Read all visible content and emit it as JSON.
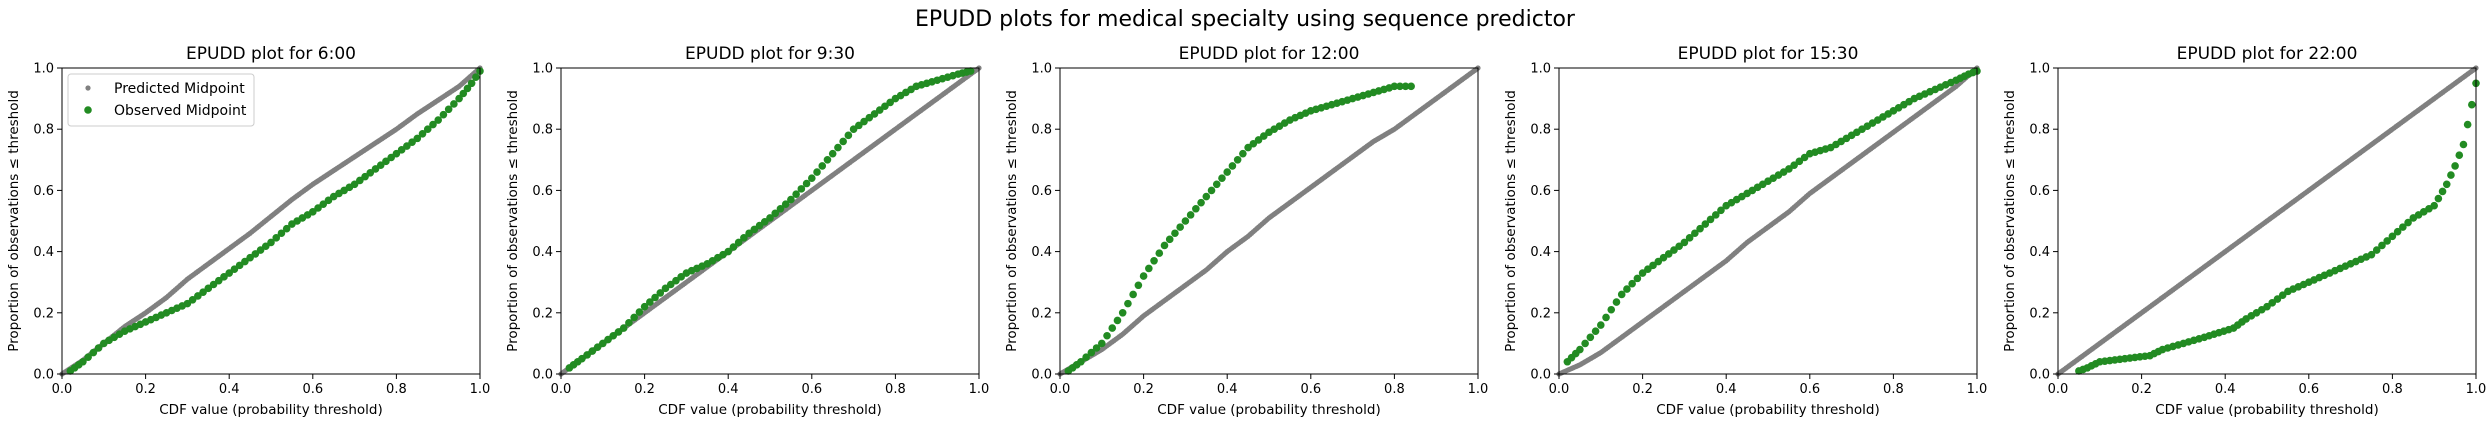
{
  "figure": {
    "suptitle": "EPUDD plots for medical specialty using sequence predictor"
  },
  "colors": {
    "predicted": "#808080",
    "observed": "#228b22"
  },
  "chart_data": [
    {
      "type": "scatter",
      "title": "EPUDD plot for 6:00",
      "xlabel": "CDF value (probability threshold)",
      "ylabel": "Proportion of observations ≤ threshold",
      "xlim": [
        0,
        1
      ],
      "ylim": [
        0,
        1
      ],
      "xticks": [
        "0.0",
        "0.2",
        "0.4",
        "0.6",
        "0.8",
        "1.0"
      ],
      "yticks": [
        "0.0",
        "0.2",
        "0.4",
        "0.6",
        "0.8",
        "1.0"
      ],
      "legend": {
        "position": "top-left",
        "entries": [
          "Predicted Midpoint",
          "Observed Midpoint"
        ]
      },
      "series": [
        {
          "name": "Predicted Midpoint",
          "marker": "small",
          "points": [
            [
              0,
              0
            ],
            [
              0.05,
              0.045
            ],
            [
              0.1,
              0.1
            ],
            [
              0.15,
              0.155
            ],
            [
              0.2,
              0.2
            ],
            [
              0.25,
              0.25
            ],
            [
              0.3,
              0.31
            ],
            [
              0.35,
              0.36
            ],
            [
              0.4,
              0.41
            ],
            [
              0.45,
              0.46
            ],
            [
              0.5,
              0.515
            ],
            [
              0.55,
              0.57
            ],
            [
              0.6,
              0.62
            ],
            [
              0.65,
              0.665
            ],
            [
              0.7,
              0.71
            ],
            [
              0.75,
              0.755
            ],
            [
              0.8,
              0.8
            ],
            [
              0.85,
              0.85
            ],
            [
              0.9,
              0.895
            ],
            [
              0.95,
              0.94
            ],
            [
              1.0,
              1.0
            ]
          ]
        },
        {
          "name": "Observed Midpoint",
          "marker": "large",
          "points": [
            [
              0.02,
              0.01
            ],
            [
              0.05,
              0.04
            ],
            [
              0.1,
              0.1
            ],
            [
              0.15,
              0.14
            ],
            [
              0.2,
              0.17
            ],
            [
              0.25,
              0.2
            ],
            [
              0.3,
              0.23
            ],
            [
              0.35,
              0.28
            ],
            [
              0.4,
              0.33
            ],
            [
              0.45,
              0.38
            ],
            [
              0.5,
              0.43
            ],
            [
              0.55,
              0.49
            ],
            [
              0.6,
              0.53
            ],
            [
              0.65,
              0.58
            ],
            [
              0.7,
              0.62
            ],
            [
              0.75,
              0.67
            ],
            [
              0.8,
              0.72
            ],
            [
              0.85,
              0.77
            ],
            [
              0.9,
              0.83
            ],
            [
              0.95,
              0.9
            ],
            [
              0.98,
              0.95
            ],
            [
              1.0,
              0.99
            ]
          ]
        }
      ]
    },
    {
      "type": "scatter",
      "title": "EPUDD plot for 9:30",
      "xlabel": "CDF value (probability threshold)",
      "ylabel": "Proportion of observations ≤ threshold",
      "xlim": [
        0,
        1
      ],
      "ylim": [
        0,
        1
      ],
      "xticks": [
        "0.0",
        "0.2",
        "0.4",
        "0.6",
        "0.8",
        "1.0"
      ],
      "yticks": [
        "0.0",
        "0.2",
        "0.4",
        "0.6",
        "0.8",
        "1.0"
      ],
      "series": [
        {
          "name": "Predicted Midpoint",
          "marker": "small",
          "points": [
            [
              0,
              0
            ],
            [
              0.05,
              0.05
            ],
            [
              0.1,
              0.1
            ],
            [
              0.15,
              0.15
            ],
            [
              0.2,
              0.2
            ],
            [
              0.25,
              0.25
            ],
            [
              0.3,
              0.3
            ],
            [
              0.35,
              0.35
            ],
            [
              0.4,
              0.4
            ],
            [
              0.45,
              0.45
            ],
            [
              0.5,
              0.5
            ],
            [
              0.55,
              0.55
            ],
            [
              0.6,
              0.6
            ],
            [
              0.65,
              0.65
            ],
            [
              0.7,
              0.7
            ],
            [
              0.75,
              0.75
            ],
            [
              0.8,
              0.8
            ],
            [
              0.85,
              0.85
            ],
            [
              0.9,
              0.9
            ],
            [
              0.95,
              0.95
            ],
            [
              1.0,
              1.0
            ]
          ]
        },
        {
          "name": "Observed Midpoint",
          "marker": "large",
          "points": [
            [
              0.02,
              0.02
            ],
            [
              0.05,
              0.05
            ],
            [
              0.1,
              0.1
            ],
            [
              0.15,
              0.15
            ],
            [
              0.2,
              0.22
            ],
            [
              0.25,
              0.28
            ],
            [
              0.3,
              0.33
            ],
            [
              0.35,
              0.36
            ],
            [
              0.4,
              0.4
            ],
            [
              0.45,
              0.46
            ],
            [
              0.5,
              0.51
            ],
            [
              0.55,
              0.57
            ],
            [
              0.6,
              0.64
            ],
            [
              0.65,
              0.72
            ],
            [
              0.7,
              0.8
            ],
            [
              0.75,
              0.85
            ],
            [
              0.8,
              0.9
            ],
            [
              0.85,
              0.94
            ],
            [
              0.9,
              0.96
            ],
            [
              0.95,
              0.98
            ],
            [
              0.98,
              0.99
            ]
          ]
        }
      ]
    },
    {
      "type": "scatter",
      "title": "EPUDD plot for 12:00",
      "xlabel": "CDF value (probability threshold)",
      "ylabel": "Proportion of observations ≤ threshold",
      "xlim": [
        0,
        1
      ],
      "ylim": [
        0,
        1
      ],
      "xticks": [
        "0.0",
        "0.2",
        "0.4",
        "0.6",
        "0.8",
        "1.0"
      ],
      "yticks": [
        "0.0",
        "0.2",
        "0.4",
        "0.6",
        "0.8",
        "1.0"
      ],
      "series": [
        {
          "name": "Predicted Midpoint",
          "marker": "small",
          "points": [
            [
              0,
              0
            ],
            [
              0.05,
              0.04
            ],
            [
              0.1,
              0.08
            ],
            [
              0.15,
              0.13
            ],
            [
              0.2,
              0.19
            ],
            [
              0.25,
              0.24
            ],
            [
              0.3,
              0.29
            ],
            [
              0.35,
              0.34
            ],
            [
              0.4,
              0.4
            ],
            [
              0.45,
              0.45
            ],
            [
              0.5,
              0.51
            ],
            [
              0.55,
              0.56
            ],
            [
              0.6,
              0.61
            ],
            [
              0.65,
              0.66
            ],
            [
              0.7,
              0.71
            ],
            [
              0.75,
              0.76
            ],
            [
              0.8,
              0.8
            ],
            [
              0.85,
              0.85
            ],
            [
              0.9,
              0.9
            ],
            [
              0.95,
              0.95
            ],
            [
              1.0,
              1.0
            ]
          ]
        },
        {
          "name": "Observed Midpoint",
          "marker": "large",
          "points": [
            [
              0.02,
              0.01
            ],
            [
              0.05,
              0.04
            ],
            [
              0.1,
              0.1
            ],
            [
              0.15,
              0.2
            ],
            [
              0.2,
              0.32
            ],
            [
              0.25,
              0.42
            ],
            [
              0.3,
              0.5
            ],
            [
              0.35,
              0.58
            ],
            [
              0.4,
              0.66
            ],
            [
              0.45,
              0.74
            ],
            [
              0.5,
              0.79
            ],
            [
              0.55,
              0.83
            ],
            [
              0.6,
              0.86
            ],
            [
              0.65,
              0.88
            ],
            [
              0.7,
              0.9
            ],
            [
              0.75,
              0.92
            ],
            [
              0.8,
              0.94
            ],
            [
              0.84,
              0.94
            ]
          ]
        }
      ]
    },
    {
      "type": "scatter",
      "title": "EPUDD plot for 15:30",
      "xlabel": "CDF value (probability threshold)",
      "ylabel": "Proportion of observations ≤ threshold",
      "xlim": [
        0,
        1
      ],
      "ylim": [
        0,
        1
      ],
      "xticks": [
        "0.0",
        "0.2",
        "0.4",
        "0.6",
        "0.8",
        "1.0"
      ],
      "yticks": [
        "0.0",
        "0.2",
        "0.4",
        "0.6",
        "0.8",
        "1.0"
      ],
      "series": [
        {
          "name": "Predicted Midpoint",
          "marker": "small",
          "points": [
            [
              0,
              0
            ],
            [
              0.05,
              0.03
            ],
            [
              0.1,
              0.07
            ],
            [
              0.15,
              0.12
            ],
            [
              0.2,
              0.17
            ],
            [
              0.25,
              0.22
            ],
            [
              0.3,
              0.27
            ],
            [
              0.35,
              0.32
            ],
            [
              0.4,
              0.37
            ],
            [
              0.45,
              0.43
            ],
            [
              0.5,
              0.48
            ],
            [
              0.55,
              0.53
            ],
            [
              0.6,
              0.59
            ],
            [
              0.65,
              0.64
            ],
            [
              0.7,
              0.69
            ],
            [
              0.75,
              0.74
            ],
            [
              0.8,
              0.79
            ],
            [
              0.85,
              0.84
            ],
            [
              0.9,
              0.89
            ],
            [
              0.95,
              0.94
            ],
            [
              1.0,
              1.0
            ]
          ]
        },
        {
          "name": "Observed Midpoint",
          "marker": "large",
          "points": [
            [
              0.02,
              0.04
            ],
            [
              0.05,
              0.08
            ],
            [
              0.1,
              0.16
            ],
            [
              0.15,
              0.26
            ],
            [
              0.2,
              0.33
            ],
            [
              0.25,
              0.38
            ],
            [
              0.3,
              0.43
            ],
            [
              0.35,
              0.49
            ],
            [
              0.4,
              0.55
            ],
            [
              0.45,
              0.59
            ],
            [
              0.5,
              0.63
            ],
            [
              0.55,
              0.67
            ],
            [
              0.6,
              0.72
            ],
            [
              0.65,
              0.74
            ],
            [
              0.7,
              0.78
            ],
            [
              0.75,
              0.82
            ],
            [
              0.8,
              0.86
            ],
            [
              0.85,
              0.9
            ],
            [
              0.9,
              0.93
            ],
            [
              0.95,
              0.96
            ],
            [
              0.98,
              0.98
            ],
            [
              1.0,
              0.99
            ]
          ]
        }
      ]
    },
    {
      "type": "scatter",
      "title": "EPUDD plot for 22:00",
      "xlabel": "CDF value (probability threshold)",
      "ylabel": "Proportion of observations ≤ threshold",
      "xlim": [
        0,
        1
      ],
      "ylim": [
        0,
        1
      ],
      "xticks": [
        "0.0",
        "0.2",
        "0.4",
        "0.6",
        "0.8",
        "1.0"
      ],
      "yticks": [
        "0.0",
        "0.2",
        "0.4",
        "0.6",
        "0.8",
        "1.0"
      ],
      "series": [
        {
          "name": "Predicted Midpoint",
          "marker": "small",
          "points": [
            [
              0,
              0
            ],
            [
              0.05,
              0.05
            ],
            [
              0.1,
              0.1
            ],
            [
              0.15,
              0.15
            ],
            [
              0.2,
              0.2
            ],
            [
              0.25,
              0.25
            ],
            [
              0.3,
              0.3
            ],
            [
              0.35,
              0.35
            ],
            [
              0.4,
              0.4
            ],
            [
              0.45,
              0.45
            ],
            [
              0.5,
              0.5
            ],
            [
              0.55,
              0.55
            ],
            [
              0.6,
              0.6
            ],
            [
              0.65,
              0.65
            ],
            [
              0.7,
              0.7
            ],
            [
              0.75,
              0.75
            ],
            [
              0.8,
              0.8
            ],
            [
              0.85,
              0.85
            ],
            [
              0.9,
              0.9
            ],
            [
              0.95,
              0.95
            ],
            [
              1.0,
              1.0
            ]
          ]
        },
        {
          "name": "Observed Midpoint",
          "marker": "large",
          "points": [
            [
              0.05,
              0.01
            ],
            [
              0.07,
              0.02
            ],
            [
              0.1,
              0.04
            ],
            [
              0.22,
              0.06
            ],
            [
              0.25,
              0.08
            ],
            [
              0.3,
              0.1
            ],
            [
              0.35,
              0.12
            ],
            [
              0.42,
              0.15
            ],
            [
              0.45,
              0.18
            ],
            [
              0.5,
              0.22
            ],
            [
              0.55,
              0.27
            ],
            [
              0.6,
              0.3
            ],
            [
              0.65,
              0.33
            ],
            [
              0.7,
              0.36
            ],
            [
              0.75,
              0.39
            ],
            [
              0.8,
              0.45
            ],
            [
              0.85,
              0.51
            ],
            [
              0.9,
              0.55
            ],
            [
              0.93,
              0.62
            ],
            [
              0.95,
              0.68
            ],
            [
              0.97,
              0.75
            ],
            [
              0.99,
              0.88
            ],
            [
              1.0,
              0.95
            ]
          ]
        }
      ]
    }
  ]
}
